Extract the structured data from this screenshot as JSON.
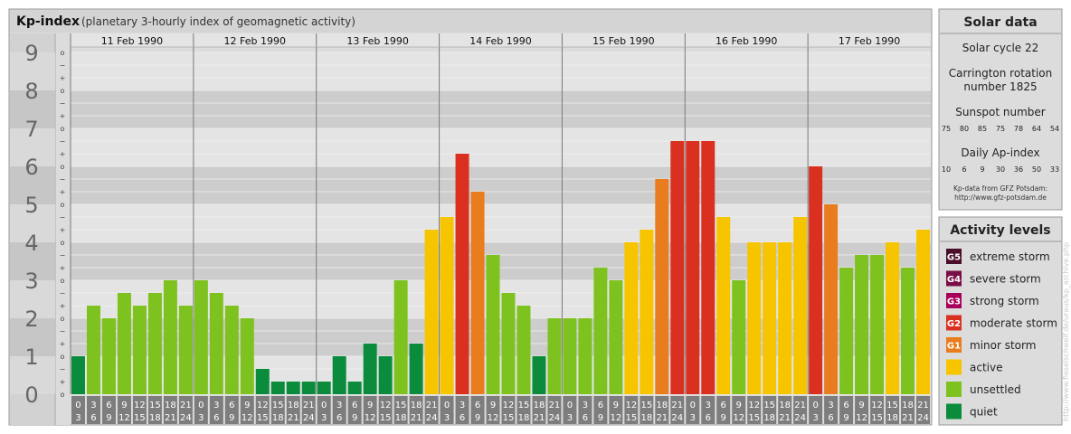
{
  "header": {
    "title": "Kp-index",
    "subtitle": "(planetary 3-hourly index of geomagnetic activity)"
  },
  "chart_data": {
    "type": "bar",
    "title": "Kp-index",
    "subtitle": "(planetary 3-hourly index of geomagnetic activity)",
    "ylim": [
      0,
      9
    ],
    "y_ticks": [
      "0",
      "1",
      "2",
      "3",
      "4",
      "5",
      "6",
      "7",
      "8",
      "9"
    ],
    "minor_tick_labels": [
      "o",
      "+",
      "−"
    ],
    "days": [
      "11 Feb 1990",
      "12 Feb 1990",
      "13 Feb 1990",
      "14 Feb 1990",
      "15 Feb 1990",
      "16 Feb 1990",
      "17 Feb 1990"
    ],
    "interval_start_labels": [
      "0",
      "3",
      "6",
      "9",
      "12",
      "15",
      "18",
      "21"
    ],
    "interval_end_labels": [
      "3",
      "6",
      "9",
      "12",
      "15",
      "18",
      "21",
      "24"
    ],
    "values": [
      1.0,
      2.333,
      2.0,
      2.667,
      2.333,
      2.667,
      3.0,
      2.333,
      3.0,
      2.667,
      2.333,
      2.0,
      0.667,
      0.333,
      0.333,
      0.333,
      0.333,
      1.0,
      0.333,
      1.333,
      1.0,
      3.0,
      1.333,
      4.333,
      4.667,
      6.333,
      5.333,
      3.667,
      2.667,
      2.333,
      1.0,
      2.0,
      2.0,
      2.0,
      3.333,
      3.0,
      4.0,
      4.333,
      5.667,
      6.667,
      6.667,
      6.667,
      4.667,
      3.0,
      4.0,
      4.0,
      4.0,
      4.667,
      6.0,
      5.0,
      3.333,
      3.667,
      3.667,
      4.0,
      3.333,
      4.333
    ],
    "grid": true,
    "legend_position": "right"
  },
  "solar": {
    "title": "Solar data",
    "cycle": "Solar cycle 22",
    "carrington_line1": "Carrington rotation",
    "carrington_line2": "number 1825",
    "sunspot_title": "Sunspot number",
    "sunspot_values": [
      "75",
      "80",
      "85",
      "75",
      "78",
      "64",
      "54"
    ],
    "ap_title": "Daily Ap-index",
    "ap_values": [
      "10",
      "6",
      "9",
      "30",
      "36",
      "50",
      "33"
    ],
    "source_line1": "Kp-data from GFZ Potsdam:",
    "source_line2": "http://www.gfz-potsdam.de"
  },
  "activity": {
    "title": "Activity levels",
    "levels": [
      {
        "code": "G5",
        "label": "extreme storm",
        "color": "#4b0d2a"
      },
      {
        "code": "G4",
        "label": "severe storm",
        "color": "#7a0d45"
      },
      {
        "code": "G3",
        "label": "strong storm",
        "color": "#a8005a"
      },
      {
        "code": "G2",
        "label": "moderate storm",
        "color": "#d93020"
      },
      {
        "code": "G1",
        "label": "minor storm",
        "color": "#e87c1e"
      },
      {
        "code": "",
        "label": "active",
        "color": "#f7c400"
      },
      {
        "code": "",
        "label": "unsettled",
        "color": "#7ec21f"
      },
      {
        "code": "",
        "label": "quiet",
        "color": "#0b8c3c"
      }
    ]
  },
  "watermark": "http://www.fieselschweif.de/uraus/kp_archive.php"
}
